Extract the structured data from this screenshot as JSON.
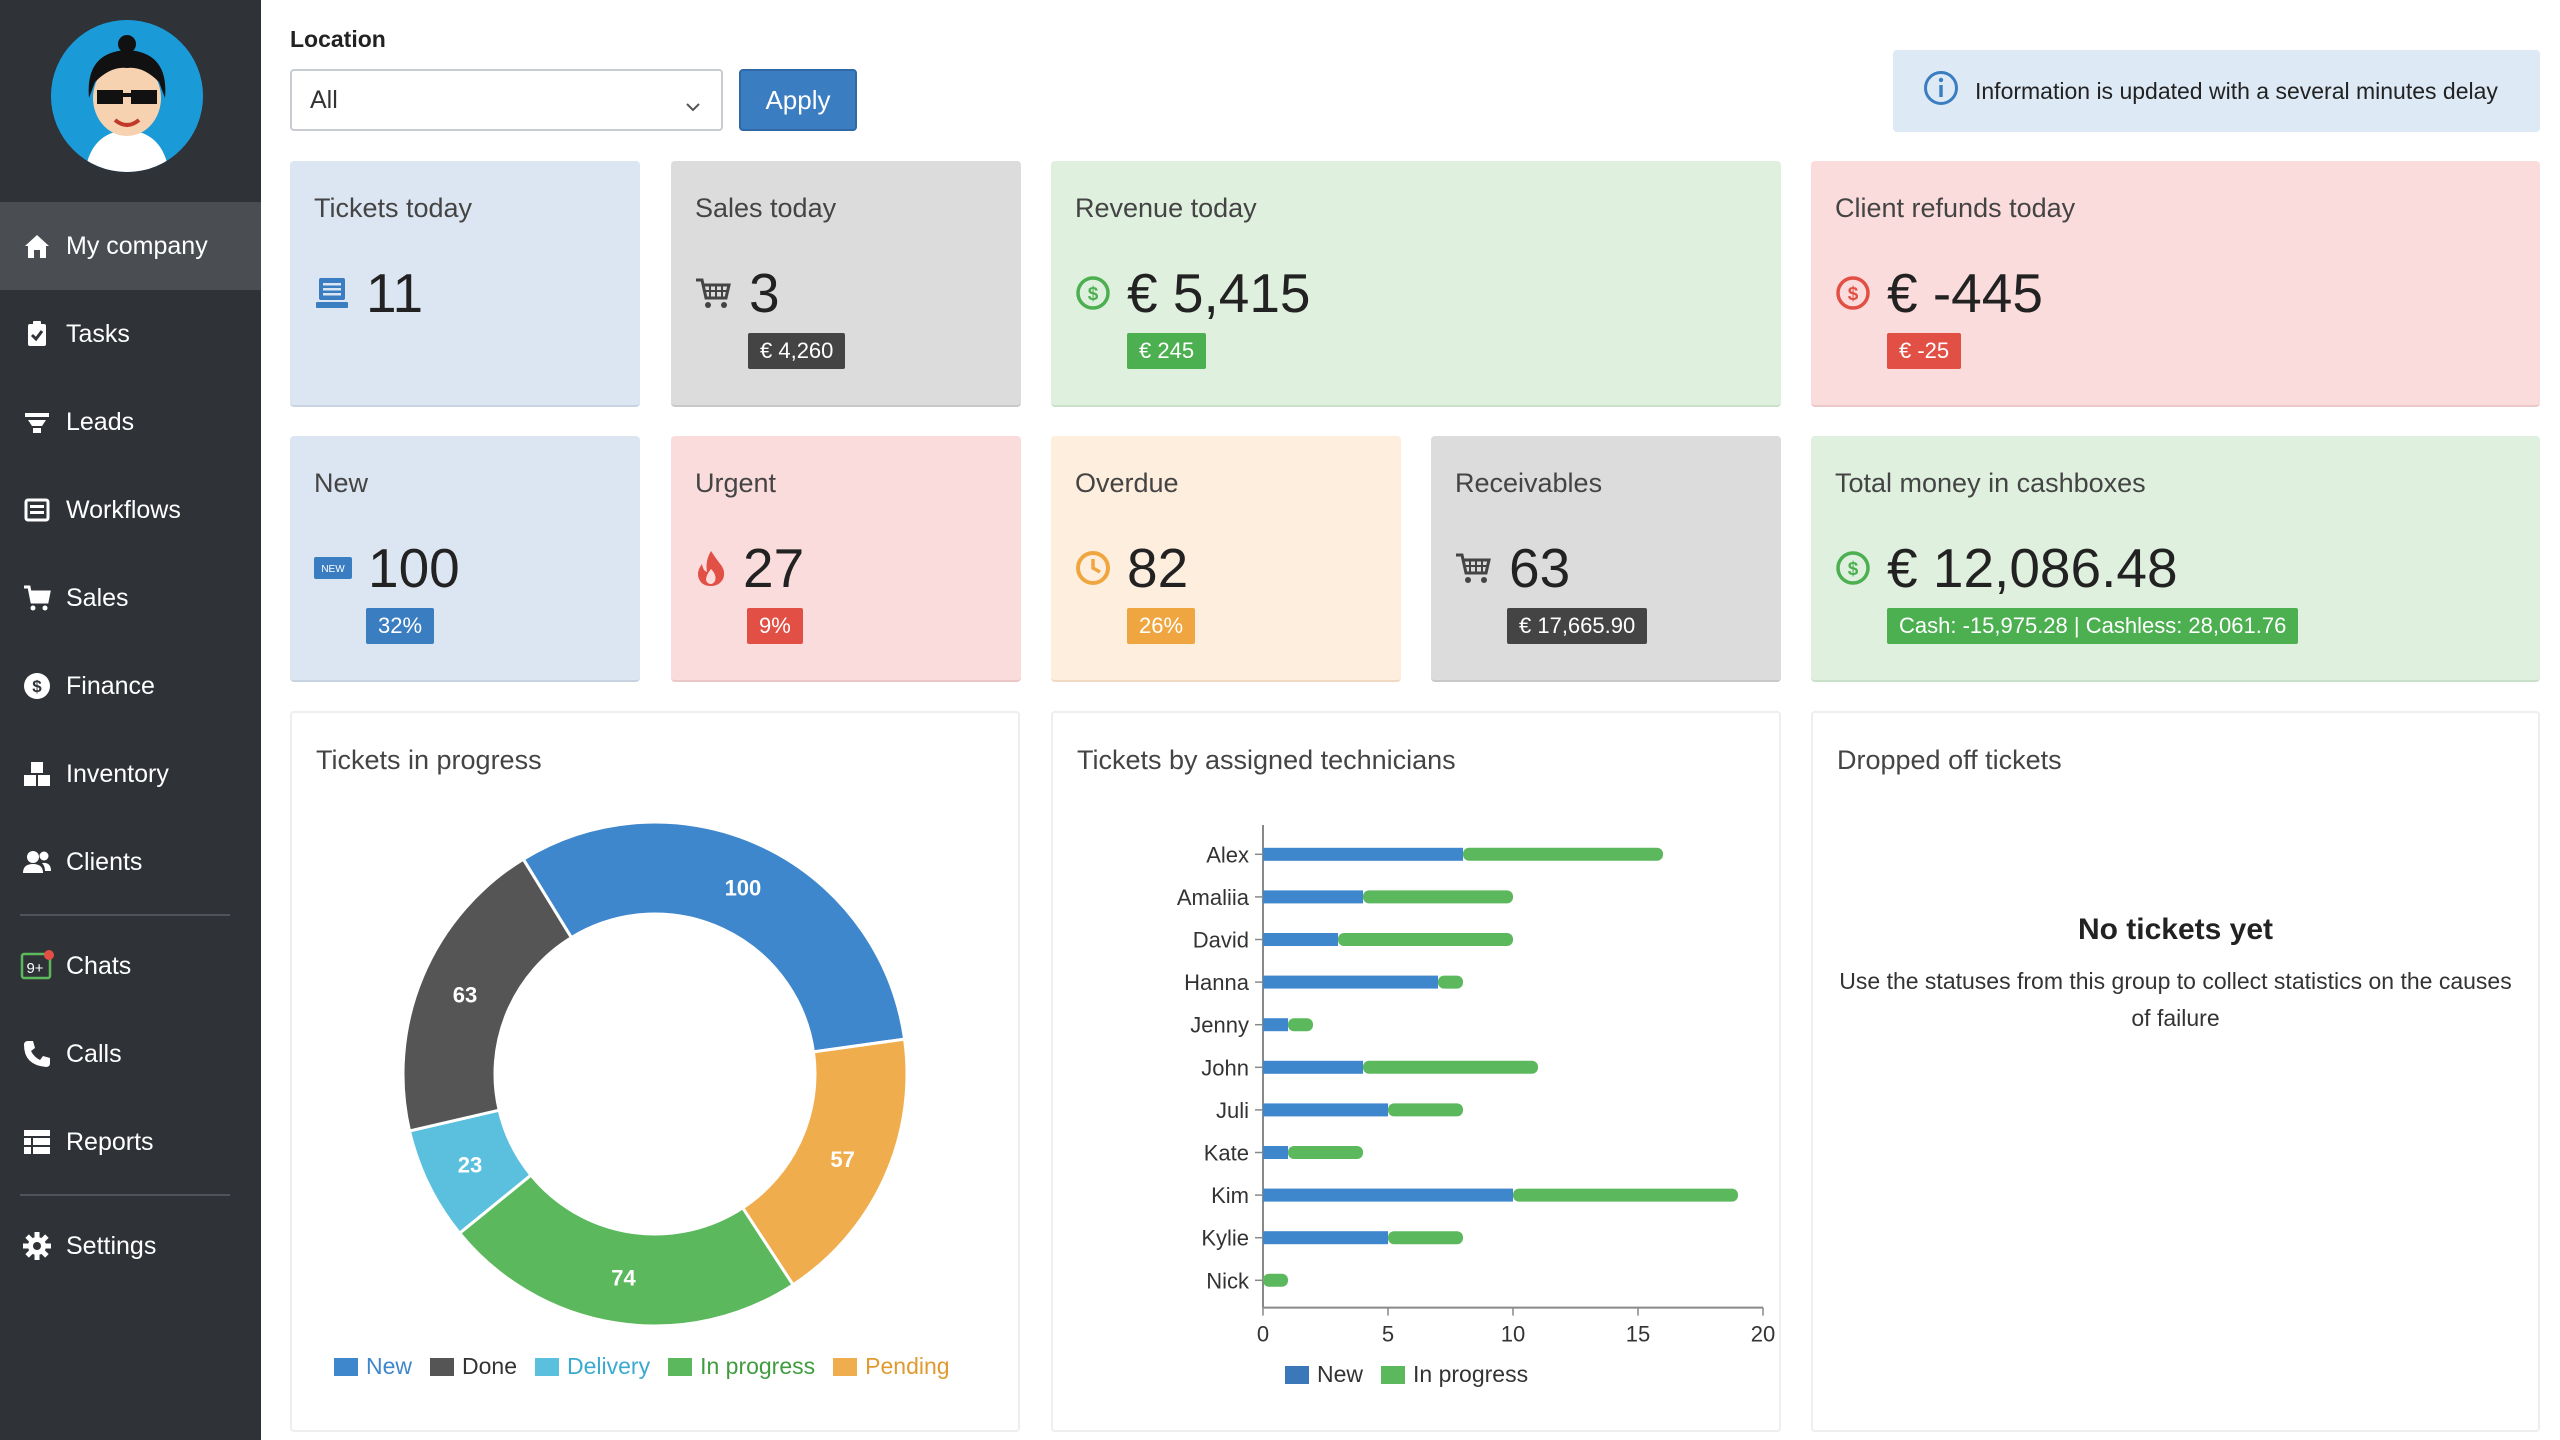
{
  "sidebar": {
    "items": [
      {
        "label": "My company",
        "icon": "home-icon",
        "active": true
      },
      {
        "label": "Tasks",
        "icon": "clipboard-icon"
      },
      {
        "label": "Leads",
        "icon": "filter-icon"
      },
      {
        "label": "Workflows",
        "icon": "workflow-icon"
      },
      {
        "label": "Sales",
        "icon": "cart-icon"
      },
      {
        "label": "Finance",
        "icon": "dollar-icon"
      },
      {
        "label": "Inventory",
        "icon": "boxes-icon"
      },
      {
        "label": "Clients",
        "icon": "users-icon"
      },
      {
        "label": "Chats",
        "icon": "chat-icon",
        "badge": "9+"
      },
      {
        "label": "Calls",
        "icon": "phone-icon"
      },
      {
        "label": "Reports",
        "icon": "table-icon"
      },
      {
        "label": "Settings",
        "icon": "gear-icon"
      }
    ]
  },
  "filter": {
    "location_label": "Location",
    "location_value": "All",
    "apply_label": "Apply"
  },
  "info": {
    "text": "Information is updated with a several minutes delay"
  },
  "cards": {
    "tickets_today": {
      "title": "Tickets today",
      "value": "11"
    },
    "sales_today": {
      "title": "Sales today",
      "value": "3",
      "badge": "€ 4,260"
    },
    "revenue_today": {
      "title": "Revenue today",
      "value": "€ 5,415",
      "badge": "€ 245"
    },
    "refunds_today": {
      "title": "Client refunds today",
      "value": "€ -445",
      "badge": "€ -25"
    },
    "new": {
      "title": "New",
      "value": "100",
      "badge": "32%",
      "icon_text": "NEW"
    },
    "urgent": {
      "title": "Urgent",
      "value": "27",
      "badge": "9%"
    },
    "overdue": {
      "title": "Overdue",
      "value": "82",
      "badge": "26%"
    },
    "receivables": {
      "title": "Receivables",
      "value": "63",
      "badge": "€ 17,665.90"
    },
    "cashboxes": {
      "title": "Total money in cashboxes",
      "value": "€ 12,086.48",
      "badge": "Cash: -15,975.28 | Cashless: 28,061.76"
    }
  },
  "colors": {
    "new": "#3f87cc",
    "done": "#555555",
    "delivery": "#5bc0de",
    "in_progress": "#5cb85c",
    "pending": "#f0ad4e"
  },
  "panels": {
    "donut_title": "Tickets in progress",
    "bar_title": "Tickets by assigned technicians",
    "dropped_title": "Dropped off tickets",
    "empty_title": "No tickets yet",
    "empty_desc": "Use the statuses from this group to collect statistics on the causes of failure"
  },
  "chart_data": [
    {
      "type": "pie",
      "categories": [
        "New",
        "Pending",
        "In progress",
        "Delivery",
        "Done"
      ],
      "values": [
        100,
        57,
        74,
        23,
        63
      ],
      "title": "Tickets in progress",
      "legend": [
        "New",
        "Done",
        "Delivery",
        "In progress",
        "Pending"
      ],
      "legend_position": "bottom"
    },
    {
      "type": "bar",
      "orientation": "horizontal",
      "stacked": true,
      "categories": [
        "Alex",
        "Amaliia",
        "David",
        "Hanna",
        "Jenny",
        "John",
        "Juli",
        "Kate",
        "Kim",
        "Kylie",
        "Nick"
      ],
      "series": [
        {
          "name": "New",
          "values": [
            8,
            4,
            3,
            7,
            1,
            4,
            5,
            1,
            10,
            5,
            0
          ]
        },
        {
          "name": "In progress",
          "values": [
            8,
            6,
            7,
            1,
            1,
            7,
            3,
            3,
            9,
            3,
            1
          ]
        }
      ],
      "xlim": [
        0,
        20
      ],
      "xticks": [
        0,
        5,
        10,
        15,
        20
      ],
      "title": "Tickets by assigned technicians",
      "legend_position": "bottom"
    }
  ]
}
